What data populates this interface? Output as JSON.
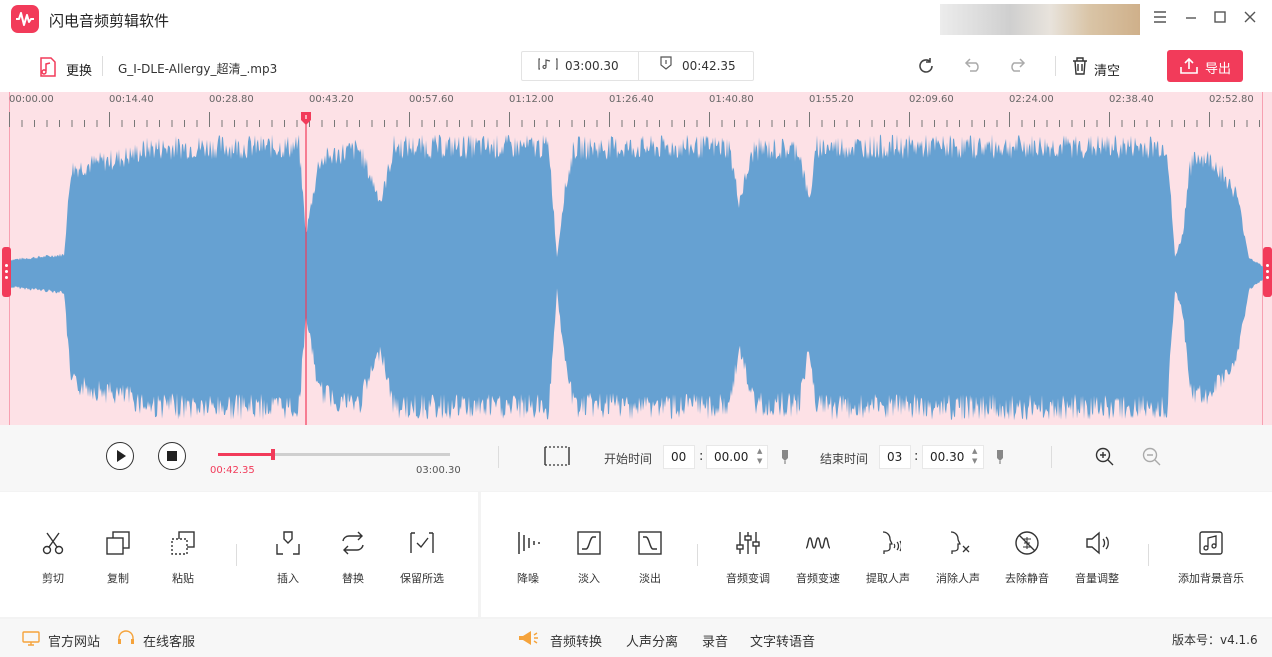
{
  "app": {
    "title": "闪电音频剪辑软件",
    "accent": "#f23b5a",
    "waveform_color": "#66a1d2",
    "waveform_bg": "#fde1e6"
  },
  "window_controls": {
    "menu_icon": "menu-icon",
    "minimize_icon": "minimize-icon",
    "maximize_icon": "maximize-icon",
    "close_icon": "close-icon"
  },
  "toolbar": {
    "replace_label": "更换",
    "file_name": "G_I-DLE-Allergy_超清_.mp3",
    "total_duration": "03:00.30",
    "selection_duration": "00:42.35",
    "clear_label": "清空",
    "export_label": "导出"
  },
  "ruler": {
    "labels": [
      "00:00.00",
      "00:14.40",
      "00:28.80",
      "00:43.20",
      "00:57.60",
      "01:12.00",
      "01:26.40",
      "01:40.80",
      "01:55.20",
      "02:09.60",
      "02:24.00",
      "02:38.40",
      "02:52.80"
    ]
  },
  "playback": {
    "current_time": "00:42.35",
    "total_time": "03:00.30",
    "progress_fraction": 0.235,
    "start_label": "开始时间",
    "start_min": "00",
    "start_sec": "00.00",
    "end_label": "结束时间",
    "end_min": "03",
    "end_sec": "00.30"
  },
  "tools": {
    "group1": [
      {
        "label": "剪切",
        "icon": "scissors-icon"
      },
      {
        "label": "复制",
        "icon": "copy-icon"
      },
      {
        "label": "粘贴",
        "icon": "paste-icon"
      },
      {
        "label": "插入",
        "icon": "insert-icon"
      },
      {
        "label": "替换",
        "icon": "replace-icon"
      },
      {
        "label": "保留所选",
        "icon": "keep-selection-icon"
      }
    ],
    "group2": [
      {
        "label": "降噪",
        "icon": "denoise-icon"
      },
      {
        "label": "淡入",
        "icon": "fade-in-icon"
      },
      {
        "label": "淡出",
        "icon": "fade-out-icon"
      },
      {
        "label": "音频变调",
        "icon": "pitch-icon"
      },
      {
        "label": "音频变速",
        "icon": "speed-icon"
      },
      {
        "label": "提取人声",
        "icon": "extract-vocal-icon"
      },
      {
        "label": "消除人声",
        "icon": "remove-vocal-icon"
      },
      {
        "label": "去除静音",
        "icon": "remove-silence-icon"
      },
      {
        "label": "音量调整",
        "icon": "volume-icon"
      },
      {
        "label": "添加背景音乐",
        "icon": "bgm-icon"
      }
    ]
  },
  "footer": {
    "website": "官方网站",
    "support": "在线客服",
    "audio_convert": "音频转换",
    "vocal_separation": "人声分离",
    "record": "录音",
    "tts": "文字转语音",
    "version": "版本号：v4.1.6"
  }
}
